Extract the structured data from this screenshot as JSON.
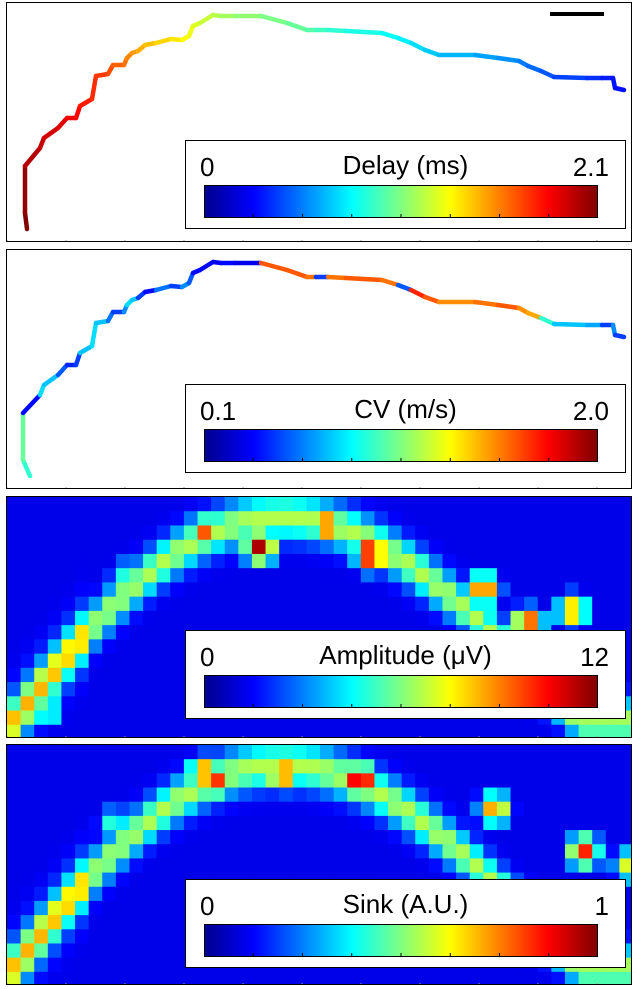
{
  "colormap": [
    "#00008f",
    "#0000ff",
    "#0080ff",
    "#00ffff",
    "#80ff80",
    "#ffff00",
    "#ff8000",
    "#ff0000",
    "#800000"
  ],
  "chart_data": [
    {
      "type": "line",
      "title": "Delay (ms)",
      "legend": {
        "min_label": "0",
        "max_label": "2.1"
      },
      "range": [
        0,
        2.1
      ],
      "x": [
        20,
        18,
        18,
        33,
        37,
        51,
        60,
        69,
        73,
        85,
        89,
        101,
        106,
        117,
        120,
        125,
        131,
        138,
        149,
        164,
        175,
        182,
        186,
        193,
        206,
        214,
        228,
        254,
        280,
        300,
        309,
        321,
        339,
        375,
        391,
        404,
        418,
        432,
        468,
        491,
        512,
        521,
        534,
        547,
        580,
        595,
        606,
        608,
        617
      ],
      "y": [
        226,
        210,
        163,
        145,
        135,
        125,
        115,
        115,
        103,
        96,
        73,
        71,
        62,
        62,
        55,
        50,
        48,
        42,
        40,
        36,
        37,
        33,
        23,
        20,
        12,
        13,
        13,
        13,
        20,
        27,
        27,
        27,
        28,
        30,
        35,
        40,
        47,
        52,
        52,
        55,
        58,
        63,
        68,
        74,
        75,
        75,
        75,
        85,
        87
      ],
      "values": [
        2.1,
        2.06,
        1.99,
        1.96,
        1.93,
        1.9,
        1.86,
        1.83,
        1.79,
        1.75,
        1.72,
        1.68,
        1.64,
        1.6,
        1.56,
        1.52,
        1.48,
        1.44,
        1.4,
        1.36,
        1.32,
        1.28,
        1.24,
        1.2,
        1.16,
        1.12,
        1.08,
        1.04,
        1.0,
        0.96,
        0.92,
        0.88,
        0.84,
        0.8,
        0.76,
        0.72,
        0.68,
        0.64,
        0.6,
        0.56,
        0.52,
        0.48,
        0.44,
        0.4,
        0.36,
        0.32,
        0.3,
        0.29,
        0.28
      ]
    },
    {
      "type": "line",
      "title": "CV (m/s)",
      "legend": {
        "min_label": "0.1",
        "max_label": "2.0"
      },
      "range": [
        0.1,
        2.0
      ],
      "x": [
        23,
        16,
        16,
        33,
        37,
        51,
        60,
        69,
        73,
        85,
        89,
        101,
        106,
        117,
        120,
        125,
        131,
        138,
        149,
        164,
        175,
        182,
        186,
        193,
        206,
        214,
        228,
        254,
        280,
        300,
        309,
        321,
        339,
        375,
        391,
        404,
        418,
        432,
        468,
        491,
        512,
        521,
        534,
        547,
        580,
        595,
        606,
        608,
        617
      ],
      "y": [
        226,
        210,
        163,
        145,
        135,
        125,
        115,
        115,
        103,
        96,
        73,
        71,
        62,
        62,
        55,
        50,
        48,
        42,
        40,
        36,
        37,
        33,
        23,
        20,
        12,
        13,
        13,
        13,
        20,
        27,
        27,
        27,
        28,
        30,
        35,
        40,
        47,
        52,
        52,
        55,
        58,
        63,
        68,
        74,
        75,
        75,
        75,
        85,
        87
      ],
      "values": [
        0.9,
        1.0,
        0.35,
        0.75,
        0.7,
        0.5,
        0.4,
        0.45,
        0.7,
        0.75,
        0.7,
        0.55,
        0.45,
        0.6,
        0.75,
        0.7,
        0.45,
        0.35,
        0.55,
        0.45,
        0.6,
        0.5,
        0.35,
        0.35,
        0.3,
        0.35,
        0.3,
        1.6,
        1.6,
        1.55,
        0.45,
        1.55,
        1.6,
        1.55,
        0.5,
        1.7,
        1.6,
        1.5,
        1.55,
        1.6,
        1.5,
        1.45,
        0.9,
        0.7,
        0.65,
        0.45,
        0.6,
        0.45,
        0.5
      ]
    },
    {
      "type": "heatmap",
      "title": "Amplitude (μV)",
      "legend": {
        "min_label": "0",
        "max_label": "12"
      },
      "range": [
        0,
        12
      ],
      "grid": [
        46,
        17
      ],
      "peaks": [
        [
          17,
          2,
          9.5
        ],
        [
          22,
          3,
          11.5
        ],
        [
          28,
          1.5,
          10
        ],
        [
          32,
          3.5,
          12
        ],
        [
          42,
          6,
          10
        ],
        [
          46,
          8.5,
          11
        ],
        [
          50,
          7.5,
          9
        ],
        [
          10,
          5,
          5
        ],
        [
          3,
          14.5,
          6
        ]
      ]
    },
    {
      "type": "heatmap",
      "title": "Sink (A.U.)",
      "legend": {
        "min_label": "0",
        "max_label": "1"
      },
      "range": [
        0,
        1
      ],
      "grid": [
        46,
        17
      ],
      "peaks": [
        [
          17,
          1.5,
          0.8
        ],
        [
          18,
          2,
          0.85
        ],
        [
          24,
          1.5,
          0.85
        ],
        [
          31,
          2,
          1.0
        ],
        [
          43,
          4,
          0.75
        ],
        [
          51,
          7,
          0.85
        ],
        [
          55,
          8,
          0.6
        ],
        [
          9,
          5,
          0.45
        ],
        [
          4,
          12,
          0.4
        ]
      ]
    }
  ]
}
